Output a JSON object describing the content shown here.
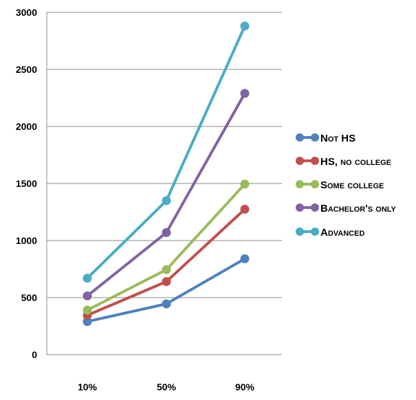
{
  "chart_data": {
    "type": "line",
    "title": "",
    "xlabel": "",
    "ylabel": "",
    "categories": [
      "10%",
      "50%",
      "90%"
    ],
    "ylim": [
      0,
      3000
    ],
    "yticks": [
      0,
      500,
      1000,
      1500,
      2000,
      2500,
      3000
    ],
    "grid": true,
    "legend_position": "right",
    "series": [
      {
        "name": "Not HS",
        "color": "#4f81bd",
        "values": [
          290,
          445,
          840
        ]
      },
      {
        "name": "HS, no college",
        "color": "#c0504d",
        "values": [
          345,
          640,
          1275
        ]
      },
      {
        "name": "Some college",
        "color": "#9bbb59",
        "values": [
          390,
          745,
          1495
        ]
      },
      {
        "name": "Bachelor's only",
        "color": "#8064a2",
        "values": [
          515,
          1070,
          2290
        ]
      },
      {
        "name": "Advanced",
        "color": "#4bacc6",
        "values": [
          670,
          1350,
          2880
        ]
      }
    ]
  }
}
